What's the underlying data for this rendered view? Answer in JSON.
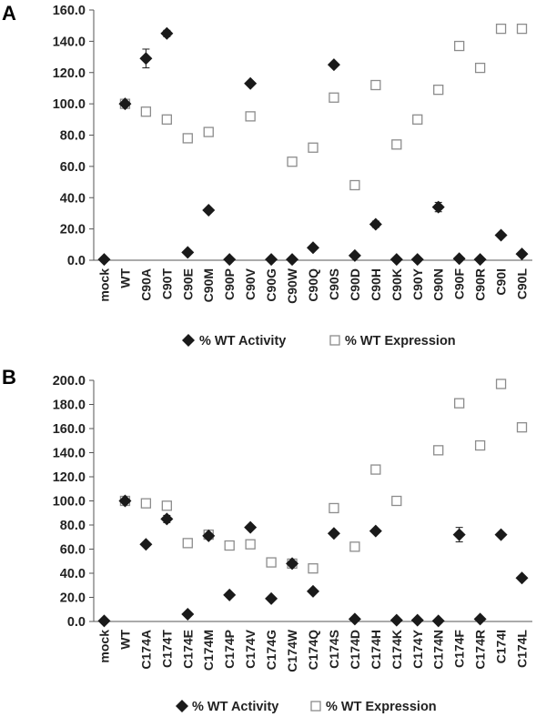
{
  "chart_data": [
    {
      "panel": "A",
      "type": "scatter",
      "categories": [
        "mock",
        "WT",
        "C90A",
        "C90T",
        "C90E",
        "C90M",
        "C90P",
        "C90V",
        "C90G",
        "C90W",
        "C90Q",
        "C90S",
        "C90D",
        "C90H",
        "C90K",
        "C90Y",
        "C90N",
        "C90F",
        "C90R",
        "C90I",
        "C90L"
      ],
      "ylim": [
        0,
        160
      ],
      "yticks": [
        "0.0",
        "20.0",
        "40.0",
        "60.0",
        "80.0",
        "100.0",
        "120.0",
        "140.0",
        "160.0"
      ],
      "series": [
        {
          "name": "% WT Activity",
          "marker": "filled-diamond",
          "values": [
            0.5,
            100,
            129,
            145,
            5,
            32,
            0.5,
            113,
            0.5,
            0.5,
            8,
            125,
            3,
            23,
            0.5,
            0.5,
            34,
            1,
            0.5,
            16,
            4
          ],
          "error": [
            0,
            0,
            6,
            2,
            0,
            0,
            0,
            0,
            0,
            0,
            0,
            0,
            0,
            2,
            0,
            0,
            3,
            0,
            0,
            0,
            0
          ]
        },
        {
          "name": "% WT Expression",
          "marker": "open-square",
          "values": [
            null,
            100,
            95,
            90,
            78,
            82,
            null,
            92,
            null,
            63,
            72,
            104,
            48,
            112,
            74,
            90,
            109,
            137,
            123,
            148,
            148
          ]
        }
      ],
      "legend": "bottom"
    },
    {
      "panel": "B",
      "type": "scatter",
      "categories": [
        "mock",
        "WT",
        "C174A",
        "C174T",
        "C174E",
        "C174M",
        "C174P",
        "C174V",
        "C174G",
        "C174W",
        "C174Q",
        "C174S",
        "C174D",
        "C174H",
        "C174K",
        "C174Y",
        "C174N",
        "C174F",
        "C174R",
        "C174I",
        "C174L"
      ],
      "ylim": [
        0,
        200
      ],
      "yticks": [
        "0.0",
        "20.0",
        "40.0",
        "60.0",
        "80.0",
        "100.0",
        "120.0",
        "140.0",
        "160.0",
        "180.0",
        "200.0"
      ],
      "series": [
        {
          "name": "% WT Activity",
          "marker": "filled-diamond",
          "values": [
            0.5,
            100,
            64,
            85,
            6,
            71,
            22,
            78,
            19,
            48,
            25,
            73,
            2,
            75,
            1,
            1,
            0.5,
            72,
            2,
            72,
            36
          ],
          "error": [
            0,
            0,
            0,
            3,
            0,
            2,
            0,
            0,
            0,
            0,
            0,
            0,
            0,
            0,
            0,
            0,
            0,
            6,
            0,
            0,
            0
          ]
        },
        {
          "name": "% WT Expression",
          "marker": "open-square",
          "values": [
            null,
            100,
            98,
            96,
            65,
            72,
            63,
            64,
            49,
            48,
            44,
            94,
            62,
            126,
            100,
            null,
            142,
            181,
            146,
            197,
            161
          ]
        }
      ],
      "legend": "bottom"
    }
  ],
  "panels": {
    "a": {
      "letter": "A",
      "legend": {
        "activity": "% WT Activity",
        "expression": "% WT Expression"
      }
    },
    "b": {
      "letter": "B",
      "legend": {
        "activity": "% WT Activity",
        "expression": "% WT Expression"
      }
    }
  },
  "colors": {
    "activity": "#1a1a1a",
    "expression": "#8c8c8c",
    "axis": "#555555"
  }
}
